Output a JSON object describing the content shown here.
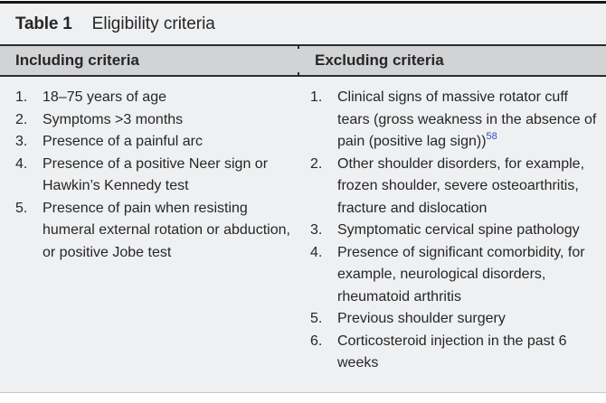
{
  "table": {
    "caption_label": "Table 1",
    "caption_title": "Eligibility criteria",
    "columns": [
      {
        "header": "Including criteria",
        "items": [
          {
            "text": "18–75 years of age"
          },
          {
            "text": "Symptoms >3 months"
          },
          {
            "text": "Presence of a painful arc"
          },
          {
            "text": "Presence of a positive Neer sign or Hawkin’s Kennedy test"
          },
          {
            "text": "Presence of pain when resisting humeral external rotation or abduction, or positive Jobe test"
          }
        ]
      },
      {
        "header": "Excluding criteria",
        "items": [
          {
            "text": "Clinical signs of massive rotator cuff tears (gross weakness in the absence of pain (positive lag sign))",
            "sup": "58"
          },
          {
            "text": "Other shoulder disorders, for example, frozen shoulder, severe osteoarthritis, fracture and dislocation"
          },
          {
            "text": "Symptomatic cervical spine pathology"
          },
          {
            "text": "Presence of significant comorbidity, for example, neurological disorders, rheumatoid arthritis"
          },
          {
            "text": "Previous shoulder surgery"
          },
          {
            "text": "Corticosteroid injection in the past 6 weeks"
          }
        ]
      }
    ]
  },
  "colors": {
    "header_bg": "#d2d3d5",
    "body_bg": "#eff0f2",
    "text": "#262626",
    "dark_rule": "#2b2b2b",
    "top_bar": "#171717",
    "bottom_rule": "#c8cacc",
    "reference_blue": "#3b4ac4"
  }
}
